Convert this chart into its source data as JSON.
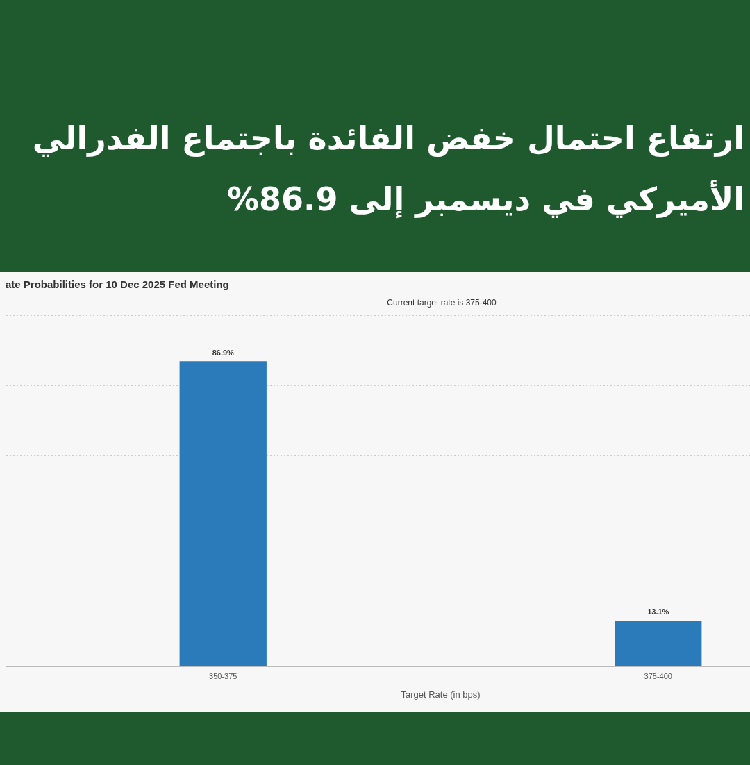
{
  "chart_data": {
    "type": "bar",
    "title": "ارتفاع احتمال خفض الفائدة باجتماع الفدرالي الأميركي في ديسمبر إلى 86.9%",
    "subtitle": "ate Probabilities for 10 Dec 2025 Fed Meeting",
    "annotations": [
      "Current target rate is 375-400"
    ],
    "xlabel": "Target Rate (in bps)",
    "categories": [
      "350-375",
      "375-400"
    ],
    "values": [
      86.9,
      13.1
    ],
    "value_labels": [
      "86.9%",
      "13.1%"
    ],
    "color": "#2b7bba",
    "grid": "y",
    "tick_labels": "x",
    "legend": false
  }
}
